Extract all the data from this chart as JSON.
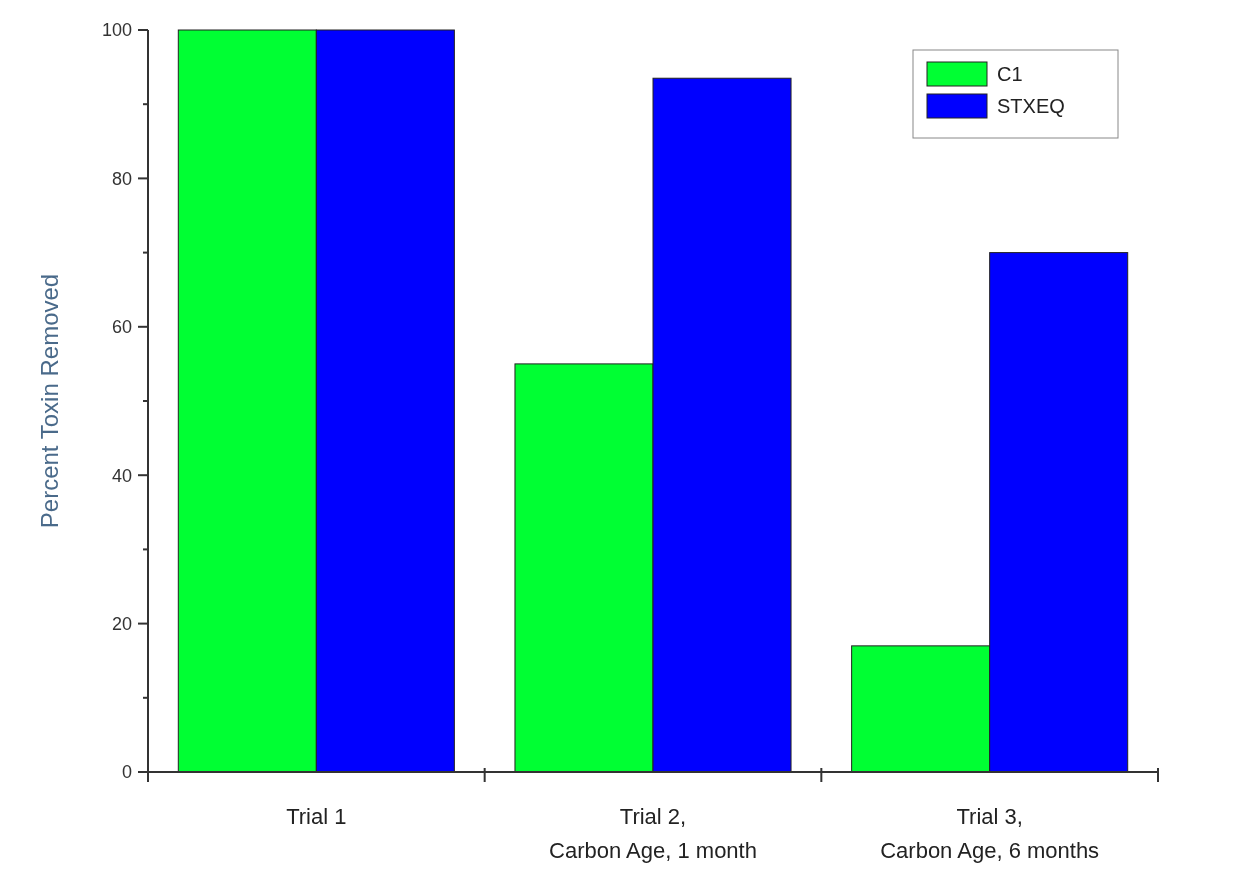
{
  "chart_data": {
    "type": "bar",
    "ylabel": "Percent Toxin Removed",
    "categories": [
      "Trial 1",
      "Trial 2,\nCarbon Age, 1 month",
      "Trial 3,\nCarbon Age, 6 months"
    ],
    "series": [
      {
        "name": "C1",
        "color": "#00ff33",
        "values": [
          100,
          55,
          17
        ]
      },
      {
        "name": "STXEQ",
        "color": "#0000ff",
        "values": [
          100,
          93.5,
          70
        ]
      }
    ],
    "ylim": [
      0,
      100
    ],
    "yticks": [
      0,
      20,
      40,
      60,
      80,
      100
    ],
    "grid": false,
    "legend": "top right"
  }
}
